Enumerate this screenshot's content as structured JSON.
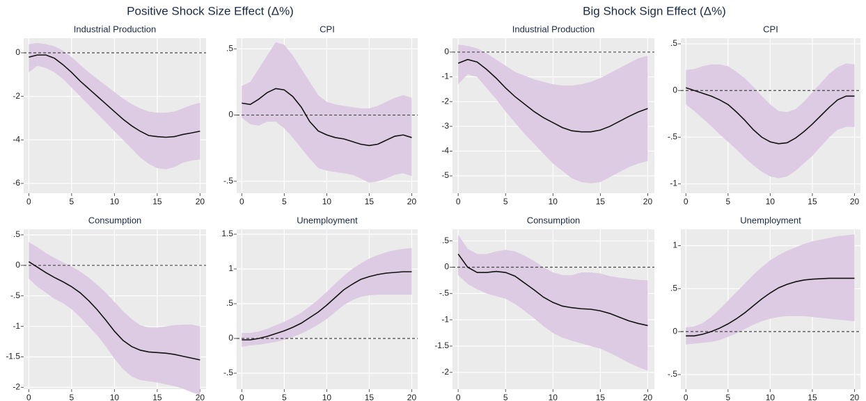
{
  "titles": [
    "Positive Shock Size Effect (Δ%)",
    "Big Shock Sign Effect (Δ%)"
  ],
  "chart_data": [
    {
      "type": "line",
      "title": "Industrial Production",
      "x": [
        0,
        1,
        2,
        3,
        4,
        5,
        6,
        7,
        8,
        9,
        10,
        11,
        12,
        13,
        14,
        15,
        16,
        17,
        18,
        19,
        20
      ],
      "series": [
        {
          "color": "#111111",
          "values": [
            -0.2,
            -0.1,
            -0.1,
            -0.25,
            -0.55,
            -0.9,
            -1.3,
            -1.65,
            -2.0,
            -2.35,
            -2.7,
            -3.05,
            -3.35,
            -3.6,
            -3.8,
            -3.85,
            -3.88,
            -3.85,
            -3.75,
            -3.68,
            -3.6
          ]
        }
      ],
      "band": {
        "color": "#dccbe2",
        "upper": [
          0.4,
          0.45,
          0.4,
          0.3,
          0.1,
          -0.2,
          -0.55,
          -0.9,
          -1.2,
          -1.5,
          -1.8,
          -2.1,
          -2.35,
          -2.55,
          -2.7,
          -2.75,
          -2.75,
          -2.7,
          -2.55,
          -2.4,
          -2.3
        ],
        "lower": [
          -0.9,
          -0.6,
          -0.7,
          -0.9,
          -1.2,
          -1.6,
          -2.0,
          -2.4,
          -2.8,
          -3.2,
          -3.6,
          -4.0,
          -4.4,
          -4.8,
          -5.1,
          -5.3,
          -5.35,
          -5.25,
          -5.05,
          -4.95,
          -4.9
        ]
      },
      "hline": 0,
      "xlim": [
        -0.6,
        20.7
      ],
      "xticks": [
        0,
        5,
        10,
        15,
        20
      ],
      "ylim": [
        -6.45,
        0.67
      ],
      "yticks": [
        -6,
        -4,
        -2,
        0
      ],
      "grid": true
    },
    {
      "type": "line",
      "title": "CPI",
      "x": [
        0,
        1,
        2,
        3,
        4,
        5,
        6,
        7,
        8,
        9,
        10,
        11,
        12,
        13,
        14,
        15,
        16,
        17,
        18,
        19,
        20
      ],
      "series": [
        {
          "color": "#111111",
          "values": [
            0.09,
            0.08,
            0.12,
            0.17,
            0.2,
            0.19,
            0.14,
            0.06,
            -0.05,
            -0.12,
            -0.15,
            -0.17,
            -0.18,
            -0.2,
            -0.22,
            -0.23,
            -0.22,
            -0.19,
            -0.16,
            -0.15,
            -0.17
          ]
        }
      ],
      "band": {
        "color": "#dccbe2",
        "upper": [
          0.22,
          0.25,
          0.35,
          0.45,
          0.55,
          0.53,
          0.45,
          0.35,
          0.25,
          0.15,
          0.1,
          0.08,
          0.07,
          0.06,
          0.05,
          0.05,
          0.07,
          0.1,
          0.13,
          0.15,
          0.13
        ],
        "lower": [
          -0.02,
          -0.07,
          -0.08,
          -0.05,
          -0.05,
          -0.1,
          -0.17,
          -0.25,
          -0.33,
          -0.4,
          -0.42,
          -0.43,
          -0.44,
          -0.45,
          -0.48,
          -0.51,
          -0.5,
          -0.48,
          -0.45,
          -0.44,
          -0.46
        ]
      },
      "hline": 0,
      "xlim": [
        -0.6,
        20.7
      ],
      "xticks": [
        0,
        5,
        10,
        15,
        20
      ],
      "ylim": [
        -0.59,
        0.58
      ],
      "yticks": [
        {
          "value": -0.5,
          "label": "-.5"
        },
        0,
        {
          "value": 0.5,
          "label": ".5"
        }
      ],
      "grid": true
    },
    {
      "type": "line",
      "title": "Industrial Production",
      "x": [
        0,
        1,
        2,
        3,
        4,
        5,
        6,
        7,
        8,
        9,
        10,
        11,
        12,
        13,
        14,
        15,
        16,
        17,
        18,
        19,
        20
      ],
      "series": [
        {
          "color": "#111111",
          "values": [
            -0.45,
            -0.3,
            -0.4,
            -0.7,
            -1.05,
            -1.45,
            -1.8,
            -2.1,
            -2.4,
            -2.65,
            -2.85,
            -3.05,
            -3.18,
            -3.22,
            -3.22,
            -3.15,
            -3.0,
            -2.8,
            -2.6,
            -2.42,
            -2.28
          ]
        }
      ],
      "band": {
        "color": "#dccbe2",
        "upper": [
          0.3,
          0.25,
          0.15,
          -0.05,
          -0.3,
          -0.55,
          -0.8,
          -0.95,
          -1.1,
          -1.2,
          -1.3,
          -1.35,
          -1.35,
          -1.3,
          -1.2,
          -1.05,
          -0.85,
          -0.65,
          -0.45,
          -0.25,
          -0.15
        ],
        "lower": [
          -1.3,
          -0.9,
          -1.0,
          -1.45,
          -1.9,
          -2.4,
          -2.85,
          -3.3,
          -3.7,
          -4.1,
          -4.5,
          -4.8,
          -5.1,
          -5.25,
          -5.3,
          -5.25,
          -5.05,
          -4.85,
          -4.65,
          -4.5,
          -4.4
        ]
      },
      "hline": 0,
      "xlim": [
        -0.6,
        20.7
      ],
      "xticks": [
        0,
        5,
        10,
        15,
        20
      ],
      "ylim": [
        -5.7,
        0.56
      ],
      "yticks": [
        -5,
        -4,
        -3,
        -2,
        -1,
        0
      ],
      "grid": true
    },
    {
      "type": "line",
      "title": "CPI",
      "x": [
        0,
        1,
        2,
        3,
        4,
        5,
        6,
        7,
        8,
        9,
        10,
        11,
        12,
        13,
        14,
        15,
        16,
        17,
        18,
        19,
        20
      ],
      "series": [
        {
          "color": "#111111",
          "values": [
            0.03,
            0,
            -0.03,
            -0.06,
            -0.1,
            -0.15,
            -0.23,
            -0.32,
            -0.42,
            -0.5,
            -0.55,
            -0.57,
            -0.56,
            -0.51,
            -0.44,
            -0.36,
            -0.27,
            -0.18,
            -0.1,
            -0.06,
            -0.06
          ]
        }
      ],
      "band": {
        "color": "#dccbe2",
        "upper": [
          0.22,
          0.23,
          0.26,
          0.28,
          0.28,
          0.26,
          0.2,
          0.13,
          0.04,
          -0.06,
          -0.15,
          -0.22,
          -0.23,
          -0.2,
          -0.12,
          -0.02,
          0.08,
          0.18,
          0.25,
          0.29,
          0.28
        ],
        "lower": [
          -0.15,
          -0.22,
          -0.3,
          -0.38,
          -0.47,
          -0.55,
          -0.63,
          -0.72,
          -0.8,
          -0.87,
          -0.92,
          -0.94,
          -0.92,
          -0.86,
          -0.78,
          -0.7,
          -0.6,
          -0.5,
          -0.42,
          -0.39,
          -0.39
        ]
      },
      "hline": 0,
      "xlim": [
        -0.6,
        20.7
      ],
      "xticks": [
        0,
        5,
        10,
        15,
        20
      ],
      "ylim": [
        -1.1,
        0.56
      ],
      "yticks": [
        -1,
        {
          "value": -0.5,
          "label": "-.5"
        },
        0,
        {
          "value": 0.5,
          "label": ".5"
        }
      ],
      "grid": true
    },
    {
      "type": "line",
      "title": "Consumption",
      "x": [
        0,
        1,
        2,
        3,
        4,
        5,
        6,
        7,
        8,
        9,
        10,
        11,
        12,
        13,
        14,
        15,
        16,
        17,
        18,
        19,
        20
      ],
      "series": [
        {
          "color": "#111111",
          "values": [
            0.06,
            -0.03,
            -0.12,
            -0.2,
            -0.27,
            -0.35,
            -0.45,
            -0.58,
            -0.73,
            -0.9,
            -1.08,
            -1.23,
            -1.33,
            -1.39,
            -1.42,
            -1.43,
            -1.44,
            -1.46,
            -1.49,
            -1.52,
            -1.55
          ]
        }
      ],
      "band": {
        "color": "#dccbe2",
        "upper": [
          0.38,
          0.3,
          0.2,
          0.12,
          0.05,
          -0.02,
          -0.1,
          -0.2,
          -0.32,
          -0.45,
          -0.6,
          -0.75,
          -0.88,
          -0.98,
          -1.02,
          -1.02,
          -1.0,
          -0.98,
          -0.97,
          -0.97,
          -1.0
        ],
        "lower": [
          -0.22,
          -0.35,
          -0.45,
          -0.55,
          -0.62,
          -0.72,
          -0.85,
          -1.0,
          -1.15,
          -1.33,
          -1.53,
          -1.7,
          -1.82,
          -1.88,
          -1.9,
          -1.92,
          -1.95,
          -1.98,
          -2.02,
          -2.08,
          -2.12
        ]
      },
      "hline": 0,
      "xlim": [
        -0.6,
        20.7
      ],
      "xticks": [
        0,
        5,
        10,
        15,
        20
      ],
      "ylim": [
        -2.03,
        0.59
      ],
      "yticks": [
        -2,
        -1.5,
        -1,
        {
          "value": -0.5,
          "label": "-.5"
        },
        0,
        {
          "value": 0.5,
          "label": ".5"
        }
      ],
      "grid": true
    },
    {
      "type": "line",
      "title": "Unemployment",
      "x": [
        0,
        1,
        2,
        3,
        4,
        5,
        6,
        7,
        8,
        9,
        10,
        11,
        12,
        13,
        14,
        15,
        16,
        17,
        18,
        19,
        20
      ],
      "series": [
        {
          "color": "#111111",
          "values": [
            -0.02,
            -0.02,
            0.0,
            0.03,
            0.07,
            0.11,
            0.16,
            0.22,
            0.3,
            0.38,
            0.48,
            0.59,
            0.7,
            0.78,
            0.85,
            0.89,
            0.92,
            0.94,
            0.95,
            0.96,
            0.96
          ]
        }
      ],
      "band": {
        "color": "#dccbe2",
        "upper": [
          0.08,
          0.08,
          0.1,
          0.14,
          0.19,
          0.24,
          0.3,
          0.37,
          0.46,
          0.56,
          0.67,
          0.79,
          0.9,
          1.0,
          1.08,
          1.15,
          1.2,
          1.24,
          1.27,
          1.29,
          1.3
        ],
        "lower": [
          -0.12,
          -0.1,
          -0.09,
          -0.07,
          -0.05,
          -0.02,
          0.02,
          0.07,
          0.13,
          0.2,
          0.28,
          0.38,
          0.48,
          0.55,
          0.6,
          0.62,
          0.63,
          0.63,
          0.63,
          0.63,
          0.63
        ]
      },
      "hline": 0,
      "xlim": [
        -0.6,
        20.7
      ],
      "xticks": [
        0,
        5,
        10,
        15,
        20
      ],
      "ylim": [
        -0.73,
        1.57
      ],
      "yticks": [
        {
          "value": -0.5,
          "label": "-.5"
        },
        0,
        {
          "value": 0.5,
          "label": ".5"
        },
        1,
        1.5
      ],
      "grid": true
    },
    {
      "type": "line",
      "title": "Consumption",
      "x": [
        0,
        1,
        2,
        3,
        4,
        5,
        6,
        7,
        8,
        9,
        10,
        11,
        12,
        13,
        14,
        15,
        16,
        17,
        18,
        19,
        20
      ],
      "series": [
        {
          "color": "#111111",
          "values": [
            0.25,
            0.0,
            -0.1,
            -0.1,
            -0.08,
            -0.1,
            -0.17,
            -0.3,
            -0.43,
            -0.57,
            -0.67,
            -0.74,
            -0.77,
            -0.79,
            -0.8,
            -0.83,
            -0.88,
            -0.95,
            -1.02,
            -1.07,
            -1.11
          ]
        }
      ],
      "band": {
        "color": "#dccbe2",
        "upper": [
          0.62,
          0.35,
          0.25,
          0.25,
          0.3,
          0.33,
          0.3,
          0.22,
          0.12,
          0.0,
          -0.1,
          -0.15,
          -0.15,
          -0.1,
          -0.1,
          -0.12,
          -0.17,
          -0.2,
          -0.22,
          -0.24,
          -0.25
        ],
        "lower": [
          -0.15,
          -0.32,
          -0.42,
          -0.5,
          -0.55,
          -0.6,
          -0.7,
          -0.83,
          -0.97,
          -1.12,
          -1.25,
          -1.34,
          -1.4,
          -1.45,
          -1.5,
          -1.55,
          -1.63,
          -1.72,
          -1.82,
          -1.9,
          -1.97
        ]
      },
      "hline": 0,
      "xlim": [
        -0.6,
        20.7
      ],
      "xticks": [
        0,
        5,
        10,
        15,
        20
      ],
      "ylim": [
        -2.32,
        0.72
      ],
      "yticks": [
        -2,
        -1.5,
        -1,
        {
          "value": -0.5,
          "label": "-.5"
        },
        0,
        {
          "value": 0.5,
          "label": ".5"
        }
      ],
      "grid": true
    },
    {
      "type": "line",
      "title": "Unemployment",
      "x": [
        0,
        1,
        2,
        3,
        4,
        5,
        6,
        7,
        8,
        9,
        10,
        11,
        12,
        13,
        14,
        15,
        16,
        17,
        18,
        19,
        20
      ],
      "series": [
        {
          "color": "#111111",
          "values": [
            -0.05,
            -0.05,
            -0.03,
            0.0,
            0.04,
            0.09,
            0.15,
            0.22,
            0.3,
            0.38,
            0.45,
            0.51,
            0.55,
            0.58,
            0.6,
            0.61,
            0.615,
            0.62,
            0.62,
            0.62,
            0.62
          ]
        }
      ],
      "band": {
        "color": "#dccbe2",
        "upper": [
          0.05,
          0.06,
          0.1,
          0.17,
          0.26,
          0.36,
          0.46,
          0.56,
          0.66,
          0.75,
          0.83,
          0.89,
          0.94,
          0.98,
          1.02,
          1.05,
          1.07,
          1.09,
          1.11,
          1.12,
          1.13
        ],
        "lower": [
          -0.15,
          -0.14,
          -0.13,
          -0.12,
          -0.1,
          -0.06,
          -0.02,
          0.03,
          0.08,
          0.12,
          0.15,
          0.17,
          0.18,
          0.18,
          0.18,
          0.17,
          0.16,
          0.15,
          0.14,
          0.13,
          0.12
        ]
      },
      "hline": 0,
      "xlim": [
        -0.6,
        20.7
      ],
      "xticks": [
        0,
        5,
        10,
        15,
        20
      ],
      "ylim": [
        -0.67,
        1.19
      ],
      "yticks": [
        {
          "value": -0.5,
          "label": "-.5"
        },
        0,
        {
          "value": 0.5,
          "label": ".5"
        },
        1
      ],
      "grid": true
    }
  ]
}
